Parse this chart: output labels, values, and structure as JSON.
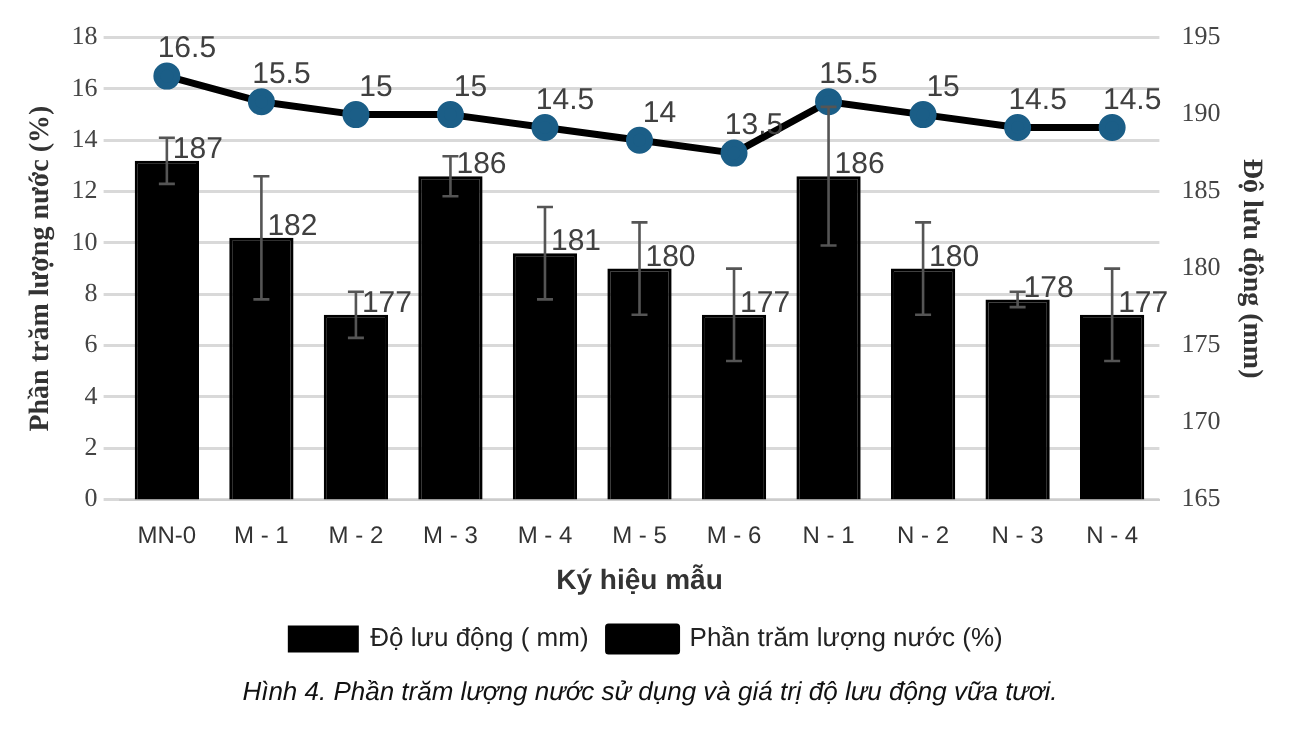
{
  "chart_data": {
    "type": "bar",
    "categories": [
      "MN-0",
      "M - 1",
      "M - 2",
      "M - 3",
      "M - 4",
      "M - 5",
      "M - 6",
      "N - 1",
      "N - 2",
      "N - 3",
      "N - 4"
    ],
    "series": [
      {
        "name": "Độ lưu động ( mm)",
        "axis": "y2",
        "color": "#000000",
        "values": [
          187,
          182,
          177,
          186,
          181,
          180,
          177,
          186,
          180,
          178,
          177
        ],
        "errors": [
          1.5,
          4,
          1.5,
          1.3,
          3,
          3,
          3,
          4.5,
          3,
          0.5,
          3
        ]
      },
      {
        "name": "Phần trăm lượng nước (%)",
        "type": "line",
        "color": "#000000",
        "values": [
          16.5,
          15.5,
          15,
          15,
          14.5,
          14,
          13.5,
          15.5,
          15,
          14.5,
          14.5
        ]
      }
    ],
    "xlabel": "Ký hiệu mẫu",
    "ylabel": "Phần trăm lượng nước (%)",
    "y2label": "Độ lưu động (mm)",
    "ylim": [
      0,
      18
    ],
    "yticks": [
      0,
      2,
      4,
      6,
      8,
      10,
      12,
      14,
      16,
      18
    ],
    "y2lim": [
      165,
      195
    ],
    "y2ticks": [
      165,
      170,
      175,
      180,
      185,
      190,
      195
    ],
    "grid": "y",
    "legend": "bottom",
    "marker": "circle",
    "data_labels": true,
    "annotations": [
      "Hình 4. Phần trăm lượng nước sử dụng và giá trị độ lưu động vữa tươi."
    ]
  }
}
